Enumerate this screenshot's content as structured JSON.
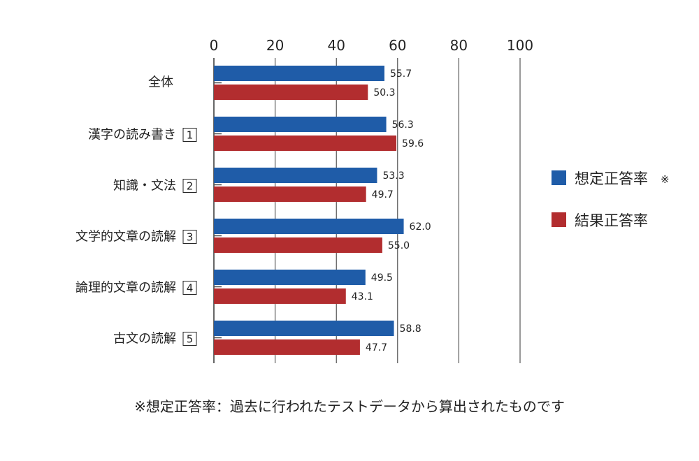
{
  "chart_data": {
    "type": "bar",
    "orientation": "horizontal",
    "xlim": [
      0,
      100
    ],
    "x_ticks": [
      "0",
      "20",
      "40",
      "60",
      "80",
      "100"
    ],
    "categories": [
      {
        "label": "全体",
        "num": ""
      },
      {
        "label": "漢字の読み書き",
        "num": "1"
      },
      {
        "label": "知識・文法",
        "num": "2"
      },
      {
        "label": "文学的文章の読解",
        "num": "3"
      },
      {
        "label": "論理的文章の読解",
        "num": "4"
      },
      {
        "label": "古文の読解",
        "num": "5"
      }
    ],
    "series": [
      {
        "name": "想定正答率",
        "name_mark": "※",
        "color": "#1f5ca8",
        "values": [
          55.7,
          56.3,
          53.3,
          62.0,
          49.5,
          58.8
        ]
      },
      {
        "name": "結果正答率",
        "name_mark": "",
        "color": "#b22d2f",
        "values": [
          50.3,
          59.6,
          49.7,
          55.0,
          43.1,
          47.7
        ]
      }
    ],
    "legend_position": "right",
    "grid": true,
    "footnote": "※想定正答率：過去に行われたテストデータから算出されたものです"
  }
}
